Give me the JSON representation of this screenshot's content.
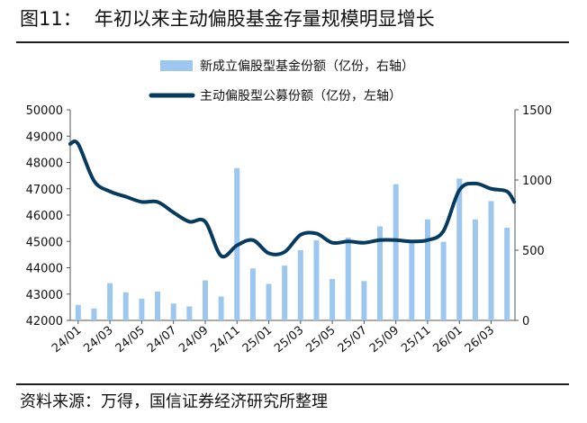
{
  "figure_label": "图11：",
  "figure_title": "年初以来主动偏股基金存量规模明显增长",
  "source": "资料来源：万得，国信证券经济研究所整理",
  "colors": {
    "bar": "#9dc7ef",
    "line": "#063a5f",
    "rule": "#1f1f1f",
    "axis": "#555555"
  },
  "chart_data": {
    "type": "bar+line",
    "legend_position": "top",
    "categories": [
      "24/01",
      "24/02",
      "24/03",
      "24/04",
      "24/05",
      "24/06",
      "24/07",
      "24/08",
      "24/09",
      "24/10",
      "24/11",
      "24/12",
      "25/01",
      "25/02",
      "25/03",
      "25/04",
      "25/05",
      "25/06",
      "25/07",
      "25/08",
      "25/09",
      "25/10",
      "25/11",
      "25/12",
      "26/01",
      "26/02",
      "26/03",
      "26/04"
    ],
    "x_tick_labels": [
      "24/01",
      "24/03",
      "24/05",
      "24/07",
      "24/09",
      "24/11",
      "25/01",
      "25/03",
      "25/05",
      "25/07",
      "25/09",
      "25/11",
      "26/01",
      "26/03"
    ],
    "left_axis": {
      "min": 42000,
      "max": 50000,
      "ticks": [
        "42000",
        "43000",
        "44000",
        "45000",
        "46000",
        "47000",
        "48000",
        "49000",
        "50000"
      ]
    },
    "right_axis": {
      "min": 0,
      "max": 1500,
      "ticks": [
        "0",
        "500",
        "1000",
        "1500"
      ]
    },
    "bar_series": {
      "name": "新成立偏股型基金份额（亿份，右轴）",
      "axis": "right",
      "values": [
        110,
        85,
        265,
        200,
        155,
        205,
        120,
        100,
        285,
        170,
        1085,
        370,
        260,
        390,
        500,
        570,
        295,
        590,
        280,
        670,
        970,
        560,
        720,
        560,
        1010,
        720,
        850,
        660
      ]
    },
    "line_series": {
      "name": "主动偏股型公募份额（亿份，左轴）",
      "axis": "left",
      "values": [
        48700,
        47300,
        46900,
        46700,
        46500,
        46500,
        46100,
        45750,
        45750,
        44450,
        44850,
        45050,
        44550,
        44600,
        45250,
        45300,
        44950,
        45000,
        44950,
        45050,
        45050,
        45000,
        45050,
        45400,
        46950,
        47200,
        47000,
        46900
      ],
      "trail_values": [
        46500
      ]
    }
  }
}
